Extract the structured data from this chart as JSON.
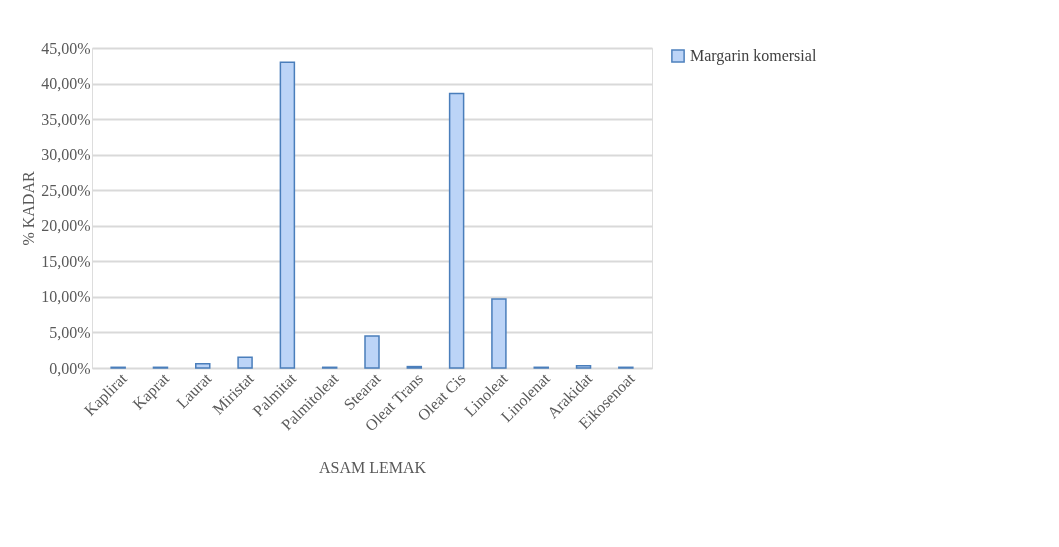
{
  "chart_data": {
    "type": "bar",
    "xlabel": "ASAM LEMAK",
    "ylabel": "% KADAR",
    "categories": [
      "Kaplirat",
      "Kaprat",
      "Laurat",
      "Miristat",
      "Palmitat",
      "Palmitoleat",
      "Stearat",
      "Oleat Trans",
      "Oleat Cis",
      "Linoleat",
      "Linolenat",
      "Arakidat",
      "Eikosenoat"
    ],
    "series": [
      {
        "name": "Margarin komersial",
        "color": "#bcd4f7",
        "values": [
          0.1,
          0.1,
          0.6,
          1.5,
          43.0,
          0.1,
          4.5,
          0.2,
          38.6,
          9.7,
          0.1,
          0.3,
          0.1
        ]
      }
    ],
    "ylim": [
      0,
      45
    ],
    "yticks": [
      {
        "value": 0,
        "label": "0,00%"
      },
      {
        "value": 5,
        "label": "5,00%"
      },
      {
        "value": 10,
        "label": "10,00%"
      },
      {
        "value": 15,
        "label": "15,00%"
      },
      {
        "value": 20,
        "label": "20,00%"
      },
      {
        "value": 25,
        "label": "25,00%"
      },
      {
        "value": 30,
        "label": "30,00%"
      },
      {
        "value": 35,
        "label": "35,00%"
      },
      {
        "value": 40,
        "label": "40,00%"
      },
      {
        "value": 45,
        "label": "45,00%"
      }
    ],
    "grid": "y",
    "legend": "right"
  }
}
